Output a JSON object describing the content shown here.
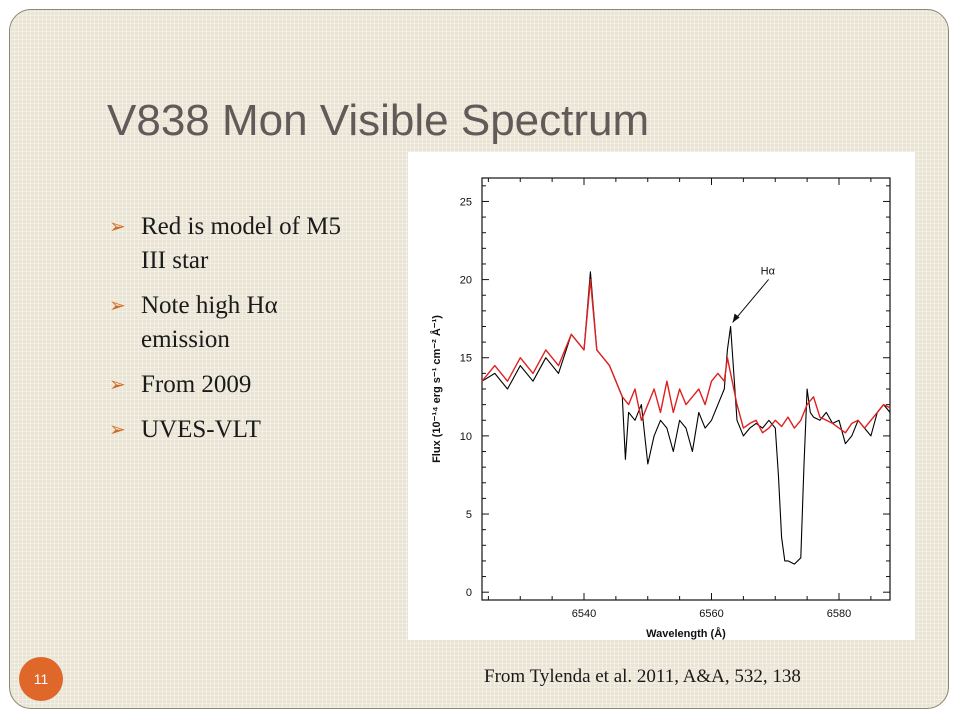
{
  "slide": {
    "title": "V838 Mon Visible Spectrum",
    "bullets": [
      "Red is model of M5 III star",
      "Note high Hα emission",
      "From 2009",
      "UVES-VLT"
    ],
    "bullet_icon": "arrow-bullet-icon",
    "page_number": "11",
    "citation": "From Tylenda et al. 2011, A&A, 532, 138",
    "colors": {
      "title": "#605b58",
      "accent": "#e0672a",
      "background": "#e9e4d4",
      "bullet_arrow": "#d2691e"
    }
  },
  "chart_data": {
    "type": "line",
    "xlabel": "Wavelength (Å)",
    "ylabel": "Flux (10⁻¹⁴ erg s⁻¹ cm⁻² Å⁻¹)",
    "xlim": [
      6524,
      6588
    ],
    "ylim": [
      -0.5,
      26.5
    ],
    "x_ticks": [
      6540,
      6560,
      6580
    ],
    "y_ticks": [
      0,
      5,
      10,
      15,
      20,
      25
    ],
    "annotations": [
      {
        "text": "Hα",
        "x": 6563.0,
        "y": 17.0
      }
    ],
    "series": [
      {
        "color": "#000000",
        "x": [
          6524,
          6526,
          6528,
          6530,
          6532,
          6534,
          6536,
          6538,
          6540,
          6541,
          6542,
          6543,
          6544,
          6545,
          6546,
          6546.5,
          6547,
          6548,
          6549,
          6550,
          6551,
          6552,
          6553,
          6554,
          6555,
          6556,
          6557,
          6558,
          6559,
          6560,
          6561,
          6562,
          6562.5,
          6563,
          6563.5,
          6564,
          6565,
          6566,
          6567,
          6568,
          6569,
          6570,
          6570.5,
          6571,
          6571.5,
          6572,
          6573,
          6574,
          6574.5,
          6575,
          6575.5,
          6576,
          6577,
          6578,
          6579,
          6580,
          6581,
          6582,
          6583,
          6584,
          6585,
          6586,
          6587,
          6588
        ],
        "y": [
          13.5,
          14.0,
          13.0,
          14.5,
          13.5,
          15.0,
          14.0,
          16.5,
          15.5,
          20.5,
          15.5,
          15.0,
          14.5,
          13.5,
          12.5,
          8.5,
          11.5,
          11.0,
          12.0,
          8.2,
          10.0,
          11.0,
          10.5,
          9.0,
          11.0,
          10.5,
          9.0,
          11.5,
          10.5,
          11.0,
          12.0,
          13.0,
          15.5,
          17.0,
          14.0,
          11.0,
          10.0,
          10.5,
          10.8,
          10.5,
          11.0,
          10.5,
          7.5,
          3.5,
          2.0,
          2.0,
          1.8,
          2.2,
          8.0,
          13.0,
          11.5,
          11.2,
          11.0,
          11.5,
          10.8,
          11.0,
          9.5,
          10.0,
          11.0,
          10.5,
          10.0,
          11.5,
          12.0,
          11.5
        ]
      },
      {
        "color": "#e02020",
        "x": [
          6524,
          6526,
          6528,
          6530,
          6532,
          6534,
          6536,
          6538,
          6540,
          6541,
          6542,
          6543,
          6544,
          6545,
          6546,
          6547,
          6548,
          6549,
          6550,
          6551,
          6552,
          6553,
          6554,
          6555,
          6556,
          6557,
          6558,
          6559,
          6560,
          6561,
          6562,
          6562.5,
          6563,
          6563.5,
          6564,
          6565,
          6566,
          6567,
          6568,
          6569,
          6570,
          6571,
          6572,
          6573,
          6574,
          6575,
          6576,
          6577,
          6578,
          6579,
          6580,
          6581,
          6582,
          6583,
          6584,
          6585,
          6586,
          6587,
          6588
        ],
        "y": [
          13.5,
          14.5,
          13.5,
          15.0,
          14.0,
          15.5,
          14.5,
          16.5,
          15.5,
          20.0,
          15.5,
          15.0,
          14.5,
          13.5,
          12.5,
          12.0,
          13.0,
          11.0,
          12.0,
          13.0,
          11.5,
          13.5,
          11.5,
          13.0,
          12.0,
          12.5,
          13.0,
          12.0,
          13.5,
          14.0,
          13.5,
          15.0,
          14.0,
          13.0,
          12.0,
          10.5,
          10.8,
          11.0,
          10.2,
          10.5,
          11.0,
          10.6,
          11.2,
          10.5,
          11.0,
          12.0,
          12.5,
          11.2,
          11.0,
          10.8,
          10.5,
          10.2,
          10.8,
          11.0,
          10.5,
          11.0,
          11.5,
          12.0,
          11.8
        ]
      }
    ]
  }
}
